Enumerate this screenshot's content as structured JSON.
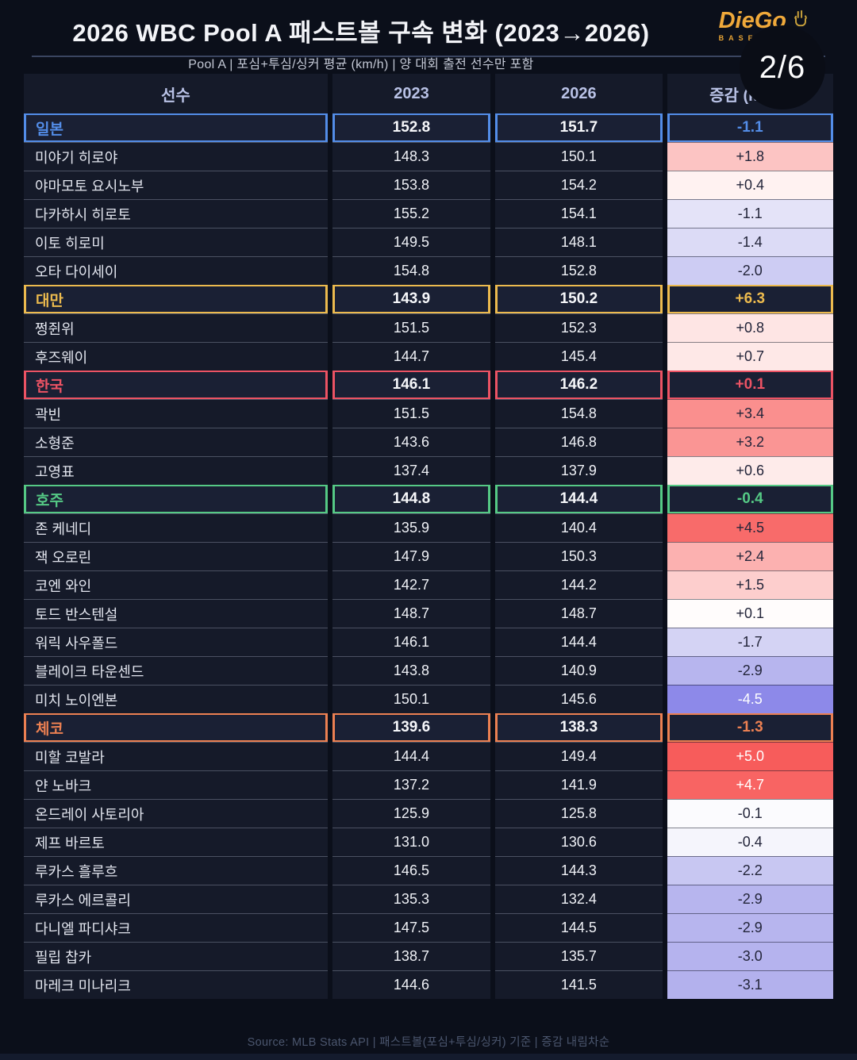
{
  "header": {
    "page_indicator": "2/6",
    "logo": {
      "wordmark": "DieGo",
      "sub": "BASEBALL",
      "brand_gold": "#f0a93a"
    }
  },
  "chart_data": {
    "type": "table",
    "title": "2026 WBC Pool A  패스트볼 구속 변화  (2023→2026)",
    "subtitle": "Pool A  |  포심+투심/싱커 평균  (km/h)  |  양 대회 출전 선수만 포함",
    "footnote": "Source: MLB Stats API  |  패스트볼(포심+투심/싱커) 기준  |  증감 내림차순",
    "columns": [
      "선수",
      "2023",
      "2026",
      "증감 (km/h)"
    ],
    "delta_text_default": "#23253a",
    "groups": [
      {
        "country": "일본",
        "accent": "#538de8",
        "v2023": "152.8",
        "v2026": "151.7",
        "delta": "-1.1",
        "players": [
          {
            "name": "미야기 히로야",
            "v2023": "148.3",
            "v2026": "150.1",
            "delta": "+1.8",
            "bg": "#fcc4c3"
          },
          {
            "name": "야마모토 요시노부",
            "v2023": "153.8",
            "v2026": "154.2",
            "delta": "+0.4",
            "bg": "#fff2f1"
          },
          {
            "name": "다카하시 히로토",
            "v2023": "155.2",
            "v2026": "154.1",
            "delta": "-1.1",
            "bg": "#e4e3f8"
          },
          {
            "name": "이토 히로미",
            "v2023": "149.5",
            "v2026": "148.1",
            "delta": "-1.4",
            "bg": "#dcdbf6"
          },
          {
            "name": "오타 다이세이",
            "v2023": "154.8",
            "v2026": "152.8",
            "delta": "-2.0",
            "bg": "#cdccf3"
          }
        ]
      },
      {
        "country": "대만",
        "accent": "#ecba4e",
        "v2023": "143.9",
        "v2026": "150.2",
        "delta": "+6.3",
        "players": [
          {
            "name": "쩡쥔위",
            "v2023": "151.5",
            "v2026": "152.3",
            "delta": "+0.8",
            "bg": "#fee5e4"
          },
          {
            "name": "후즈웨이",
            "v2023": "144.7",
            "v2026": "145.4",
            "delta": "+0.7",
            "bg": "#fee8e7"
          }
        ]
      },
      {
        "country": "한국",
        "accent": "#ec5364",
        "v2023": "146.1",
        "v2026": "146.2",
        "delta": "+0.1",
        "players": [
          {
            "name": "곽빈",
            "v2023": "151.5",
            "v2026": "154.8",
            "delta": "+3.4",
            "bg": "#fa8f8e"
          },
          {
            "name": "소형준",
            "v2023": "143.6",
            "v2026": "146.8",
            "delta": "+3.2",
            "bg": "#fa9594"
          },
          {
            "name": "고영표",
            "v2023": "137.4",
            "v2026": "137.9",
            "delta": "+0.6",
            "bg": "#feebea"
          }
        ]
      },
      {
        "country": "호주",
        "accent": "#55c985",
        "v2023": "144.8",
        "v2026": "144.4",
        "delta": "-0.4",
        "players": [
          {
            "name": "존 케네디",
            "v2023": "135.9",
            "v2026": "140.4",
            "delta": "+4.5",
            "bg": "#f86b6a"
          },
          {
            "name": "잭 오로린",
            "v2023": "147.9",
            "v2026": "150.3",
            "delta": "+2.4",
            "bg": "#fcb1b0"
          },
          {
            "name": "코엔 와인",
            "v2023": "142.7",
            "v2026": "144.2",
            "delta": "+1.5",
            "bg": "#fdcecd"
          },
          {
            "name": "토드 반스텐설",
            "v2023": "148.7",
            "v2026": "148.7",
            "delta": "+0.1",
            "bg": "#fffcfc"
          },
          {
            "name": "워릭 사우폴드",
            "v2023": "146.1",
            "v2026": "144.4",
            "delta": "-1.7",
            "bg": "#d4d3f4"
          },
          {
            "name": "블레이크 타운센드",
            "v2023": "143.8",
            "v2026": "140.9",
            "delta": "-2.9",
            "bg": "#b7b5ee"
          },
          {
            "name": "미치 노이엔본",
            "v2023": "150.1",
            "v2026": "145.6",
            "delta": "-4.5",
            "bg": "#8d89e9",
            "fg": "#ffffff"
          }
        ]
      },
      {
        "country": "체코",
        "accent": "#ec8052",
        "v2023": "139.6",
        "v2026": "138.3",
        "delta": "-1.3",
        "players": [
          {
            "name": "미할 코발라",
            "v2023": "144.4",
            "v2026": "149.4",
            "delta": "+5.0",
            "bg": "#f75c5b",
            "fg": "#ffffff"
          },
          {
            "name": "얀 노바크",
            "v2023": "137.2",
            "v2026": "141.9",
            "delta": "+4.7",
            "bg": "#f86463",
            "fg": "#ffffff"
          },
          {
            "name": "온드레이 사토리아",
            "v2023": "125.9",
            "v2026": "125.8",
            "delta": "-0.1",
            "bg": "#fbfbfe"
          },
          {
            "name": "제프 바르토",
            "v2023": "131.0",
            "v2026": "130.6",
            "delta": "-0.4",
            "bg": "#f5f5fc"
          },
          {
            "name": "루카스 흘루흐",
            "v2023": "146.5",
            "v2026": "144.3",
            "delta": "-2.2",
            "bg": "#c8c7f2"
          },
          {
            "name": "루카스 에르콜리",
            "v2023": "135.3",
            "v2026": "132.4",
            "delta": "-2.9",
            "bg": "#b7b5ee"
          },
          {
            "name": "다니엘 파디샤크",
            "v2023": "147.5",
            "v2026": "144.5",
            "delta": "-2.9",
            "bg": "#b7b5ee"
          },
          {
            "name": "필립 찹카",
            "v2023": "138.7",
            "v2026": "135.7",
            "delta": "-3.0",
            "bg": "#b5b3ee"
          },
          {
            "name": "마레크 미나리크",
            "v2023": "144.6",
            "v2026": "141.5",
            "delta": "-3.1",
            "bg": "#b3b1ed"
          }
        ]
      }
    ]
  },
  "footer": {}
}
